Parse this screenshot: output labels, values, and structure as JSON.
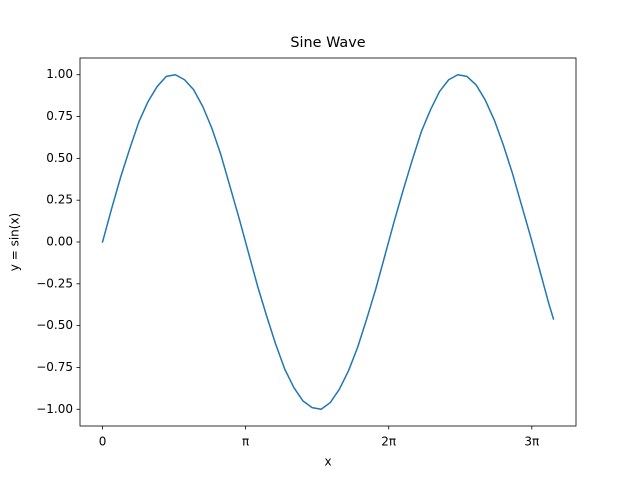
{
  "chart_data": {
    "type": "line",
    "title": "Sine Wave",
    "xlabel": "x",
    "ylabel": "y = sin(x)",
    "color": "#1f77b4",
    "x": [
      0,
      0.2,
      0.4,
      0.6,
      0.8,
      1.0,
      1.2,
      1.4,
      1.6,
      1.8,
      2.0,
      2.2,
      2.4,
      2.6,
      2.8,
      3.0,
      3.2,
      3.4,
      3.6,
      3.8,
      4.0,
      4.2,
      4.4,
      4.6,
      4.8,
      5.0,
      5.2,
      5.4,
      5.6,
      5.8,
      6.0,
      6.2,
      6.4,
      6.6,
      6.8,
      7.0,
      7.2,
      7.4,
      7.6,
      7.8,
      8.0,
      8.2,
      8.4,
      8.6,
      8.8,
      9.0,
      9.2,
      9.4,
      9.6,
      9.8,
      9.9
    ],
    "values": [
      0,
      0.2,
      0.39,
      0.56,
      0.72,
      0.84,
      0.93,
      0.99,
      1.0,
      0.97,
      0.91,
      0.81,
      0.68,
      0.52,
      0.33,
      0.14,
      -0.06,
      -0.26,
      -0.44,
      -0.61,
      -0.76,
      -0.87,
      -0.95,
      -0.99,
      -1.0,
      -0.96,
      -0.88,
      -0.77,
      -0.63,
      -0.46,
      -0.28,
      -0.08,
      0.12,
      0.31,
      0.49,
      0.66,
      0.79,
      0.9,
      0.97,
      1.0,
      0.99,
      0.94,
      0.85,
      0.73,
      0.58,
      0.41,
      0.22,
      0.03,
      -0.17,
      -0.37,
      -0.46
    ],
    "xlim": [
      -0.495,
      10.395
    ],
    "xticks": [
      0,
      {
        "value": 3.14159,
        "label": "π"
      },
      {
        "value": 6.28319,
        "label": "2π"
      },
      {
        "value": 9.42478,
        "label": "3π"
      }
    ],
    "ylim": [
      -1.1,
      1.1
    ],
    "yticks": [
      {
        "value": -1,
        "label": "−1.00"
      },
      {
        "value": -0.75,
        "label": "−0.75"
      },
      {
        "value": -0.5,
        "label": "−0.50"
      },
      {
        "value": -0.25,
        "label": "−0.25"
      },
      {
        "value": 0,
        "label": "0.00"
      },
      {
        "value": 0.25,
        "label": "0.25"
      },
      {
        "value": 0.5,
        "label": "0.50"
      },
      {
        "value": 0.75,
        "label": "0.75"
      },
      {
        "value": 1,
        "label": "1.00"
      }
    ]
  }
}
